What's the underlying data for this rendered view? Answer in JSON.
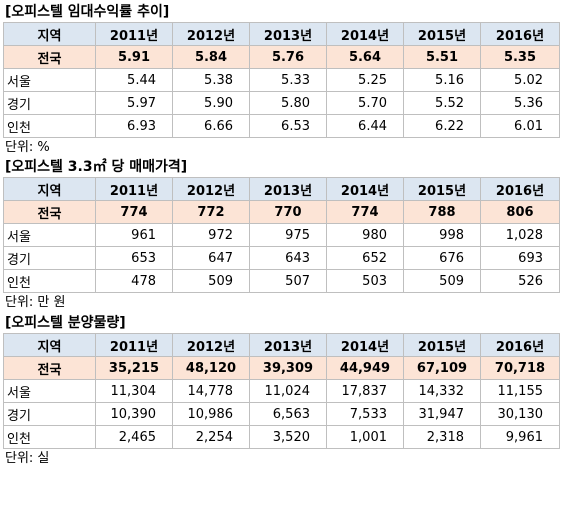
{
  "tables": [
    {
      "title": "[오피스텔 임대수익률 추이]",
      "header": [
        "지역",
        "2011년",
        "2012년",
        "2013년",
        "2014년",
        "2015년",
        "2016년"
      ],
      "rows": [
        [
          "전국",
          "5.91",
          "5.84",
          "5.76",
          "5.64",
          "5.51",
          "5.35"
        ],
        [
          "서울",
          "5.44",
          "5.38",
          "5.33",
          "5.25",
          "5.16",
          "5.02"
        ],
        [
          "경기",
          "5.97",
          "5.90",
          "5.80",
          "5.70",
          "5.52",
          "5.36"
        ],
        [
          "인천",
          "6.93",
          "6.66",
          "6.53",
          "6.44",
          "6.22",
          "6.01"
        ]
      ],
      "unit": "단위: %"
    },
    {
      "title": "[오피스텔 3.3㎡ 당 매매가격]",
      "header": [
        "지역",
        "2011년",
        "2012년",
        "2013년",
        "2014년",
        "2015년",
        "2016년"
      ],
      "rows": [
        [
          "전국",
          "774",
          "772",
          "770",
          "774",
          "788",
          "806"
        ],
        [
          "서울",
          "961",
          "972",
          "975",
          "980",
          "998",
          "1,028"
        ],
        [
          "경기",
          "653",
          "647",
          "643",
          "652",
          "676",
          "693"
        ],
        [
          "인천",
          "478",
          "509",
          "507",
          "503",
          "509",
          "526"
        ]
      ],
      "unit": "단위: 만 원"
    },
    {
      "title": "[오피스텔 분양물량]",
      "header": [
        "지역",
        "2011년",
        "2012년",
        "2013년",
        "2014년",
        "2015년",
        "2016년"
      ],
      "rows": [
        [
          "전국",
          "35,215",
          "48,120",
          "39,309",
          "44,949",
          "67,109",
          "70,718"
        ],
        [
          "서울",
          "11,304",
          "14,778",
          "11,024",
          "17,837",
          "14,332",
          "11,155"
        ],
        [
          "경기",
          "10,390",
          "10,986",
          "6,563",
          "7,533",
          "31,947",
          "30,130"
        ],
        [
          "인천",
          "2,465",
          "2,254",
          "3,520",
          "1,001",
          "2,318",
          "9,961"
        ]
      ],
      "unit": "단위: 실"
    }
  ]
}
